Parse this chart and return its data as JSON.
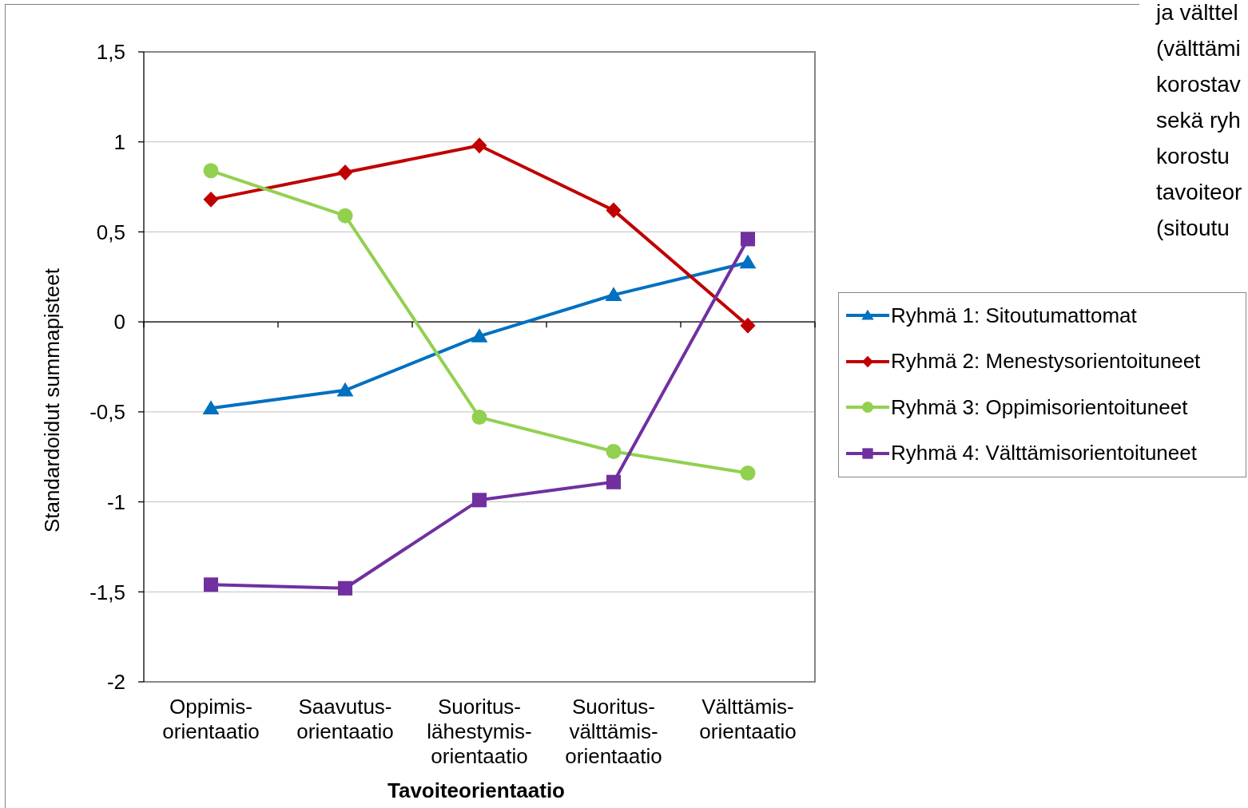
{
  "chart_data": {
    "type": "line",
    "xlabel": "Tavoiteorientaatio",
    "ylabel": "Standardoidut summapisteet",
    "categories": [
      "Oppimis-orientaatio",
      "Saavutus-orientaatio",
      "Suoritus-lähestymis-orientaatio",
      "Suoritus-välttämis-orientaatio",
      "Välttämis-orientaatio"
    ],
    "series": [
      {
        "name": "Ryhmä 1: Sitoutumattomat",
        "color": "#0070c0",
        "marker": "triangle",
        "values": [
          -0.48,
          -0.38,
          -0.08,
          0.15,
          0.33
        ]
      },
      {
        "name": "Ryhmä 2: Menestysorientoituneet",
        "color": "#c00000",
        "marker": "diamond",
        "values": [
          0.68,
          0.83,
          0.98,
          0.62,
          -0.02
        ]
      },
      {
        "name": "Ryhmä 3: Oppimisorientoituneet",
        "color": "#92d050",
        "marker": "circle",
        "values": [
          0.84,
          0.59,
          -0.53,
          -0.72,
          -0.84
        ]
      },
      {
        "name": "Ryhmä 4: Välttämisorientoituneet",
        "color": "#7030a0",
        "marker": "square",
        "values": [
          -1.46,
          -1.48,
          -0.99,
          -0.89,
          0.46
        ]
      }
    ],
    "ylim": [
      -2,
      1.5
    ],
    "yticks": [
      -2,
      {
        "value": -1.5,
        "label": "-1,5"
      },
      -1,
      {
        "value": -0.5,
        "label": "-0,5"
      },
      0,
      {
        "value": 0.5,
        "label": "0,5"
      },
      1,
      {
        "value": 1.5,
        "label": "1,5"
      }
    ],
    "grid": "y",
    "legend": "right",
    "line_style": "solid",
    "annotations": [
      "ja välttel",
      "(välttämi",
      "korostav",
      "sekä ryh",
      "korostu",
      "tavoiteor",
      "(sitoutu"
    ]
  }
}
